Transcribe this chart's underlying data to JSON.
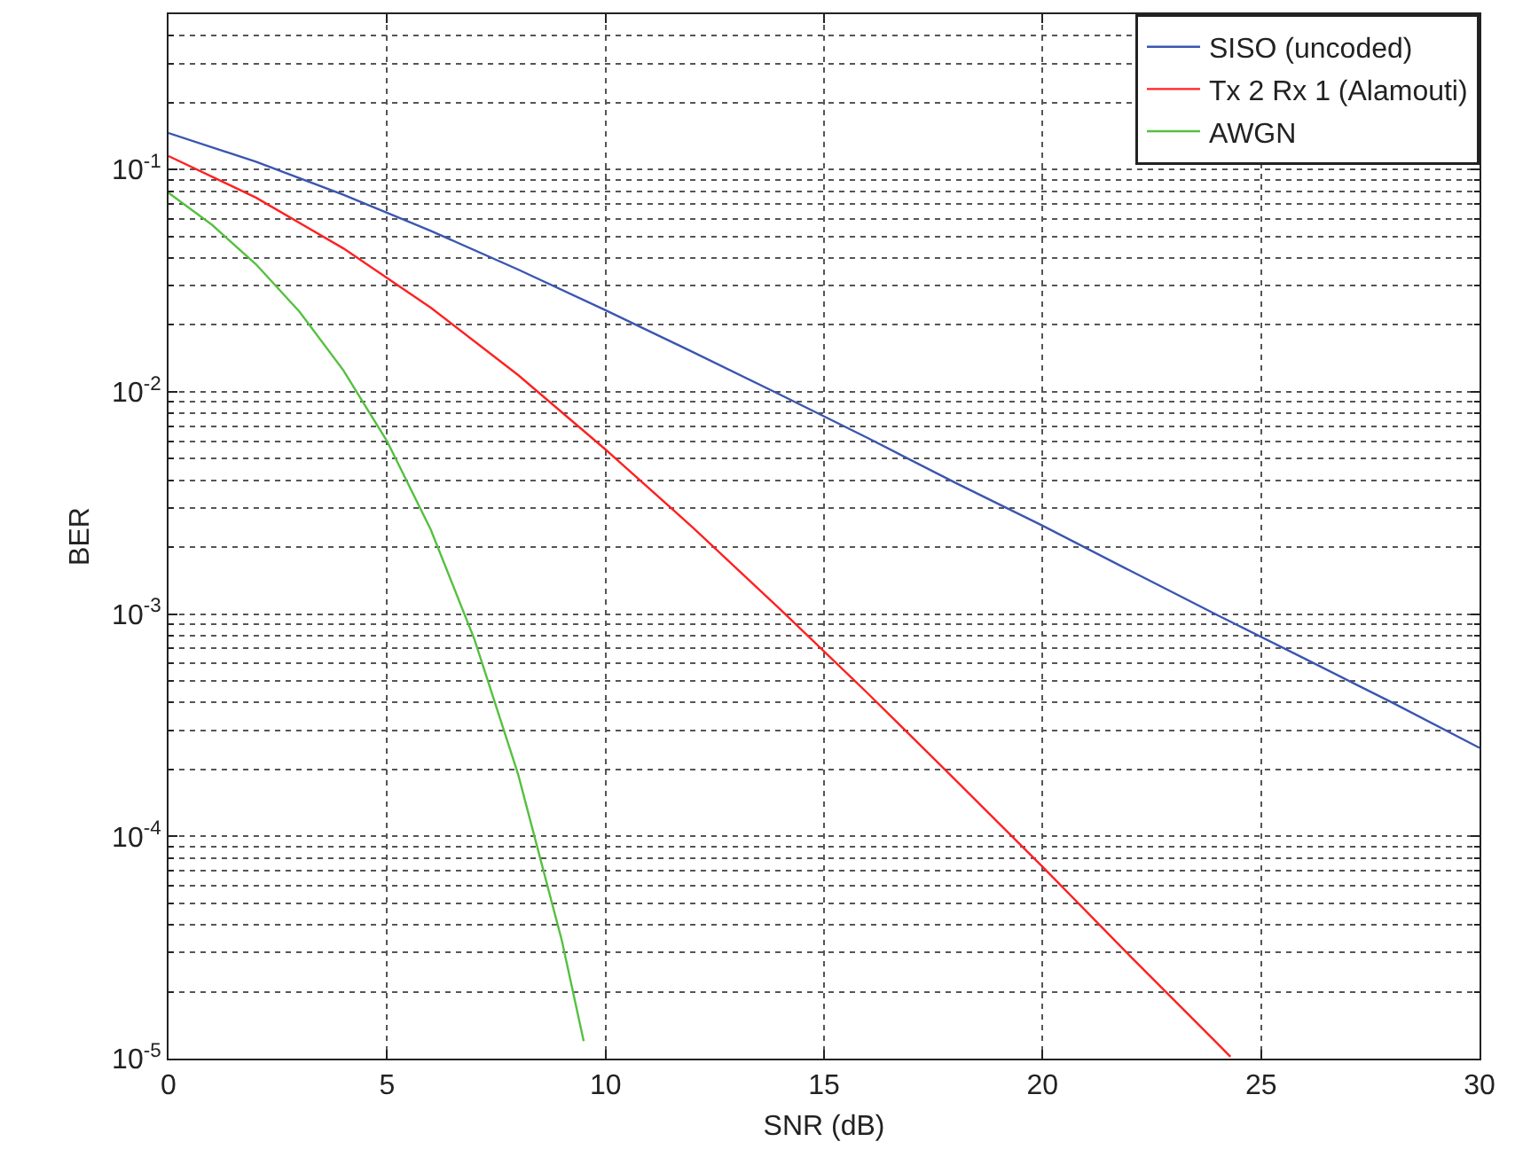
{
  "chart_data": {
    "type": "line",
    "xlabel": "SNR (dB)",
    "ylabel": "BER",
    "log": "y",
    "grid": true,
    "legend": "top right",
    "line_style": "solid",
    "marker": "none",
    "xlim": [
      0,
      30
    ],
    "xticks": [
      0,
      5,
      10,
      15,
      20,
      25,
      30
    ],
    "ylim": [
      1e-05,
      0.5
    ],
    "yticks": [
      {
        "value": 1e-05,
        "label": "10$^{-5}$"
      },
      {
        "value": 0.0001,
        "label": "10$^{-4}$"
      },
      {
        "value": 0.001,
        "label": "10$^{-3}$"
      },
      {
        "value": 0.01,
        "label": "10$^{-2}$"
      },
      {
        "value": 0.1,
        "label": "10$^{-1}$"
      }
    ],
    "series": [
      {
        "name": "SISO (uncoded)",
        "color": "#3a56b0",
        "x": [
          0,
          2,
          4,
          6,
          8,
          10,
          12,
          14,
          16,
          18,
          20,
          22,
          24,
          26,
          28,
          30
        ],
        "values": [
          0.146,
          0.1085,
          0.0771,
          0.053,
          0.0355,
          0.0233,
          0.0151,
          0.0097,
          0.0062,
          0.0039,
          0.0025,
          0.00157,
          0.00099,
          0.00063,
          0.0004,
          0.00025
        ]
      },
      {
        "name": "Tx 2 Rx 1 (Alamouti)",
        "color": "#ff2020",
        "x": [
          0,
          2,
          4,
          6,
          8,
          10,
          12,
          14,
          16,
          18,
          20,
          22,
          24,
          24.3
        ],
        "values": [
          0.115,
          0.0748,
          0.0442,
          0.0239,
          0.0119,
          0.0055,
          0.00245,
          0.00105,
          0.00044,
          0.00018,
          7.3e-05,
          2.9e-05,
          1.17e-05,
          1.02e-05
        ]
      },
      {
        "name": "AWGN",
        "color": "#55c040",
        "x": [
          0,
          1,
          2,
          3,
          4,
          5,
          6,
          7,
          8,
          9,
          9.5
        ],
        "values": [
          0.0786,
          0.0563,
          0.0375,
          0.0229,
          0.0125,
          0.006,
          0.0024,
          0.00077,
          0.00019,
          3.4e-05,
          1.2e-05
        ]
      }
    ]
  }
}
